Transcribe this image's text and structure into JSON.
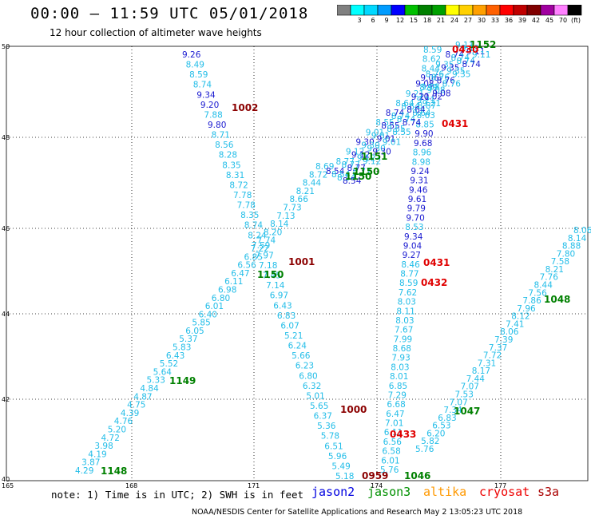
{
  "header": {
    "title": "00:00 – 11:59 UTC 05/01/2018",
    "subtitle": "12 hour collection of altimeter wave heights"
  },
  "colorbar": {
    "unit": "(ft)",
    "bins": [
      {
        "label": "",
        "color": "#808080"
      },
      {
        "label": "3",
        "color": "#00ffff"
      },
      {
        "label": "6",
        "color": "#00d8ff"
      },
      {
        "label": "9",
        "color": "#009cff"
      },
      {
        "label": "12",
        "color": "#0000ff"
      },
      {
        "label": "15",
        "color": "#00c000"
      },
      {
        "label": "18",
        "color": "#008000"
      },
      {
        "label": "21",
        "color": "#00a000"
      },
      {
        "label": "24",
        "color": "#ffff00"
      },
      {
        "label": "27",
        "color": "#ffd000"
      },
      {
        "label": "30",
        "color": "#ffa000"
      },
      {
        "label": "33",
        "color": "#ff6000"
      },
      {
        "label": "36",
        "color": "#ff0000"
      },
      {
        "label": "39",
        "color": "#c00000"
      },
      {
        "label": "42",
        "color": "#800000"
      },
      {
        "label": "45",
        "color": "#a000a0"
      },
      {
        "label": "70",
        "color": "#ff80ff"
      },
      {
        "label": "",
        "color": "#000000"
      }
    ]
  },
  "map": {
    "lat_labels": [
      "50",
      "48",
      "46",
      "44",
      "42",
      "40"
    ],
    "lon_labels": [
      "165",
      "168",
      "171",
      "174",
      "177"
    ],
    "colors": {
      "light": "#22bde8",
      "blue": "#1a1ad0",
      "jason3": "#008000",
      "cryosat": "#e00000",
      "s3a": "#8b0000"
    },
    "track_a": [
      "9.26",
      "8.49",
      "8.59",
      "8.74",
      "9.34",
      "9.20",
      "7.88",
      "9.80",
      "8.71",
      "8.56",
      "8.28",
      "8.35",
      "8.31",
      "8.72",
      "7.78",
      "7.78",
      "8.35",
      "8.74",
      "8.24",
      "7.59",
      "7.97",
      "7.18",
      "7.45",
      "7.14",
      "6.97",
      "6.43",
      "6.83",
      "6.07",
      "5.21",
      "6.24",
      "5.66",
      "6.23",
      "6.80",
      "6.32",
      "5.01",
      "5.65",
      "6.37",
      "5.36",
      "5.78",
      "6.51",
      "5.96",
      "5.49",
      "5.18"
    ],
    "track_b": [
      "4.29",
      "3.87",
      "4.19",
      "3.98",
      "4.72",
      "5.20",
      "4.76",
      "4.39",
      "4.75",
      "4.87",
      "4.84",
      "5.33",
      "5.64",
      "5.52",
      "6.43",
      "5.83",
      "5.37",
      "6.05",
      "5.85",
      "6.40",
      "6.01",
      "6.80",
      "6.98",
      "6.11",
      "6.47",
      "6.56",
      "6.85",
      "7.22",
      "7.74",
      "8.20",
      "8.14",
      "7.13",
      "7.73",
      "8.66",
      "8.21",
      "8.44",
      "8.72",
      "8.69"
    ],
    "track_c": [
      "8.59",
      "8.62",
      "8.44",
      "9.06",
      "8.99",
      "10.02",
      "8.87",
      "8.63",
      "8.85",
      "9.90",
      "9.68",
      "8.96",
      "8.98",
      "9.24",
      "9.31",
      "9.46",
      "9.61",
      "9.79",
      "9.70",
      "8.53",
      "9.34",
      "9.04",
      "9.27",
      "8.46",
      "8.77",
      "8.59",
      "7.62",
      "8.03",
      "8.11",
      "8.03",
      "7.67",
      "7.99",
      "8.68",
      "7.93",
      "8.03",
      "8.01",
      "6.85",
      "7.29",
      "6.68",
      "6.47",
      "7.01",
      "6.11",
      "6.56",
      "6.58",
      "6.01",
      "5.76"
    ],
    "track_d": [
      "8.06",
      "8.14",
      "8.88",
      "7.80",
      "7.58",
      "8.21",
      "7.76",
      "8.44",
      "7.56",
      "7.86",
      "7.96",
      "8.12",
      "7.41",
      "8.06",
      "7.39",
      "7.37",
      "7.72",
      "7.31",
      "8.17",
      "7.44",
      "7.07",
      "7.53",
      "7.07",
      "7.34",
      "6.83",
      "6.53",
      "6.20",
      "5.82",
      "5.76"
    ],
    "diag_band": [
      "8.54",
      "8.77",
      "9.12",
      "9.30",
      "9.01",
      "8.55",
      "8.74",
      "8.64",
      "9.21",
      "9.08",
      "8.76",
      "9.35",
      "8.74",
      "9.11"
    ],
    "time_labels": [
      {
        "text": "1002",
        "sat": "s3a"
      },
      {
        "text": "1001",
        "sat": "s3a"
      },
      {
        "text": "1000",
        "sat": "s3a"
      },
      {
        "text": "0959",
        "sat": "s3a"
      },
      {
        "text": "1152",
        "sat": "jason3"
      },
      {
        "text": "1151",
        "sat": "jason3"
      },
      {
        "text": "1150",
        "sat": "jason3"
      },
      {
        "text": "1150",
        "sat": "jason3"
      },
      {
        "text": "1149",
        "sat": "jason3"
      },
      {
        "text": "1148",
        "sat": "jason3"
      },
      {
        "text": "1048",
        "sat": "jason3"
      },
      {
        "text": "1047",
        "sat": "jason3"
      },
      {
        "text": "1046",
        "sat": "jason3"
      },
      {
        "text": "0430",
        "sat": "cryosat"
      },
      {
        "text": "0431",
        "sat": "cryosat"
      },
      {
        "text": "0431",
        "sat": "cryosat"
      },
      {
        "text": "0432",
        "sat": "cryosat"
      },
      {
        "text": "0433",
        "sat": "cryosat"
      }
    ]
  },
  "note": "note: 1) Time is in UTC; 2) SWH is in feet",
  "satellites": [
    {
      "name": "jason2",
      "color": "#0000e0"
    },
    {
      "name": "jason3",
      "color": "#009000"
    },
    {
      "name": "altika",
      "color": "#ff9900"
    },
    {
      "name": "cryosat",
      "color": "#ee0000"
    },
    {
      "name": "s3a",
      "color": "#aa0000"
    }
  ],
  "footer": "NOAA/NESDIS Center for Satellite Applications and Research    May  2 13:05:23 UTC 2018"
}
